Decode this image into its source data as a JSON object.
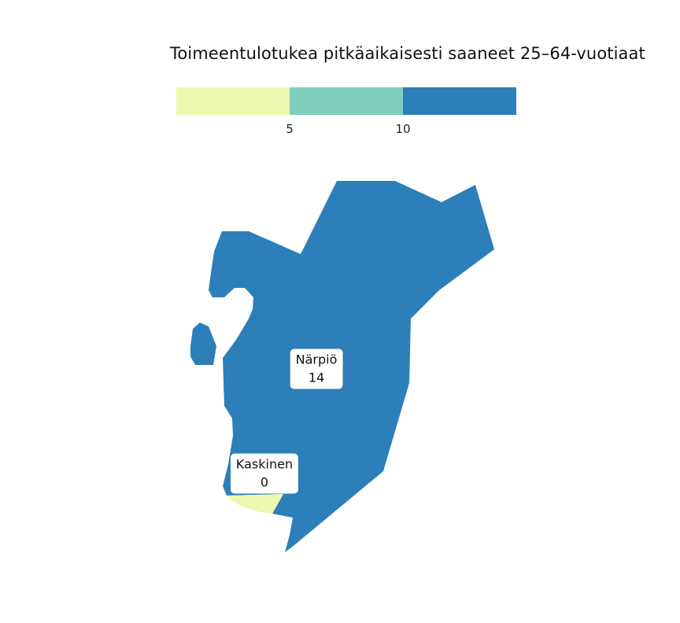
{
  "title": "Toimeentulotukea pitkäaikaisesti saaneet 25–64-vuotiaat",
  "legend": {
    "breaks": [
      "5",
      "10"
    ],
    "colors": [
      "#edf8b1",
      "#7fcdbb",
      "#2c7fb8"
    ]
  },
  "regions": [
    {
      "name": "Närpiö",
      "value": "14",
      "color": "#2c7fb8"
    },
    {
      "name": "Kaskinen",
      "value": "0",
      "color": "#edf8b1"
    }
  ]
}
